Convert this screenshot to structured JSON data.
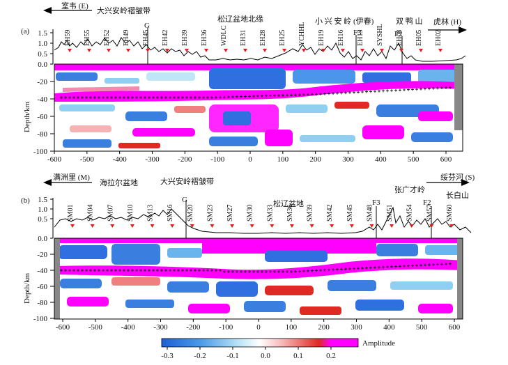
{
  "panel_a": {
    "label": "(a)",
    "left_direction": "室韦 (E)",
    "right_direction": "虎林 (H)",
    "regions": [
      "大兴安岭褶皱带",
      "松辽盆地北缘",
      "小 兴 安 岭 (伊春)",
      "双 鸭 山"
    ],
    "faults": [
      "G",
      "F3",
      "F2"
    ],
    "stations": [
      "EH59",
      "EH55",
      "EH52",
      "EH49",
      "EH45",
      "EH42",
      "EH39",
      "EH36",
      "WDLC",
      "EH31",
      "EH28",
      "EH25",
      "YCHHL",
      "EH19",
      "EH16",
      "EH13",
      "SYSHL",
      "EH08",
      "EH05",
      "EH02"
    ],
    "elev_ticks": [
      "1.5",
      "1.0",
      "0.5",
      "0.0"
    ],
    "depth_ticks": [
      "-20",
      "-40",
      "-60",
      "-80",
      "-100"
    ],
    "depth_label": "Depth/km",
    "x_ticks": [
      "-600",
      "-500",
      "-400",
      "-300",
      "-200",
      "-100",
      "0",
      "100",
      "200",
      "300",
      "400",
      "500",
      "600"
    ]
  },
  "panel_b": {
    "label": "(b)",
    "left_direction": "满洲里 (M)",
    "right_direction": "绥芬河 (S)",
    "regions": [
      "海拉尔盆地",
      "大兴安岭褶皱带",
      "松辽盆地",
      "张广才岭",
      "长白山"
    ],
    "faults": [
      "G",
      "F3",
      "F2"
    ],
    "stations": [
      "SM01",
      "SM04",
      "SM07",
      "SM10",
      "SM13",
      "SM16",
      "SM20",
      "SM23",
      "SM27",
      "SM30",
      "SM33",
      "SM36",
      "SM39",
      "SM42",
      "SM45",
      "SM48",
      "SM51",
      "SM54",
      "SM57",
      "SM60"
    ],
    "elev_ticks": [
      "1.5",
      "1.0",
      "0.5",
      "0.0"
    ],
    "depth_ticks": [
      "-20",
      "-40",
      "-60",
      "-80",
      "-100"
    ],
    "depth_label": "Depth/km",
    "x_ticks": [
      "-600",
      "-500",
      "-400",
      "-300",
      "-200",
      "-100",
      "0",
      "100",
      "200",
      "300",
      "400",
      "500",
      "600"
    ]
  },
  "colorbar": {
    "ticks": [
      "-0.3",
      "-0.2",
      "-0.1",
      "0.0",
      "0.1",
      "0.2"
    ],
    "label": "Amplitude",
    "colors": [
      "#1f5fd6",
      "#6fb8ee",
      "#ffffff",
      "#f08080",
      "#d9241b",
      "#ff00ff"
    ]
  }
}
